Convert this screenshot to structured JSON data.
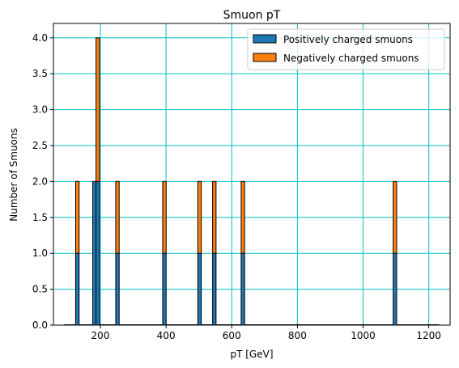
{
  "chart_data": {
    "type": "bar",
    "title": "Smuon pT",
    "xlabel": "pT [GeV]",
    "ylabel": "Number of Smuons",
    "xlim": [
      57,
      1265
    ],
    "ylim": [
      0,
      4.2
    ],
    "xticks": [
      200,
      400,
      600,
      800,
      1000,
      1200
    ],
    "yticks": [
      0.0,
      0.5,
      1.0,
      1.5,
      2.0,
      2.5,
      3.0,
      3.5,
      4.0
    ],
    "xtick_labels": [
      "200",
      "400",
      "600",
      "800",
      "1000",
      "1200"
    ],
    "ytick_labels": [
      "0.0",
      "0.5",
      "1.0",
      "1.5",
      "2.0",
      "2.5",
      "3.0",
      "3.5",
      "4.0"
    ],
    "grid": true,
    "grid_color": "#00bfbf",
    "legend_position": "top-right",
    "stacked": true,
    "bin_width_gev": 10.5,
    "x": [
      130,
      182,
      192,
      252,
      395,
      502,
      547,
      634,
      1097
    ],
    "series": [
      {
        "name": "Positively charged smuons",
        "color": "#1f77b4",
        "values": [
          1,
          2,
          2,
          1,
          1,
          1,
          1,
          1,
          1
        ]
      },
      {
        "name": "Negatively charged smuons",
        "color": "#ff7f0e",
        "values": [
          1,
          0,
          2,
          1,
          1,
          1,
          1,
          1,
          1
        ]
      }
    ]
  }
}
